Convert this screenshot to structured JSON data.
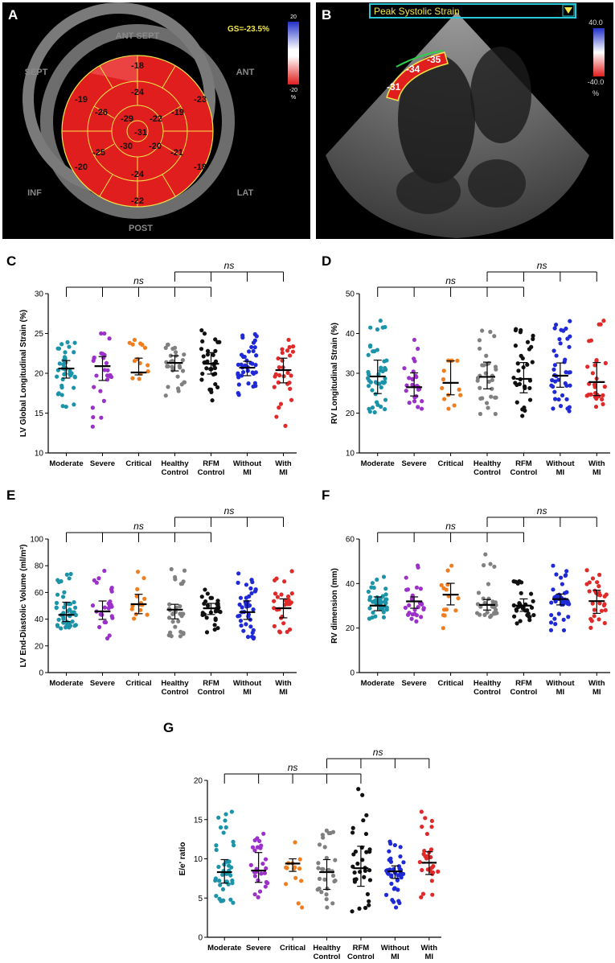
{
  "panels": {
    "A": {
      "letter": "A",
      "gs_label": "GS=-23.5%",
      "labels": {
        "ant_sept": "ANT SEPT",
        "sept": "SEPT",
        "ant": "ANT",
        "inf": "INF",
        "lat": "LAT",
        "post": "POST"
      },
      "scale": {
        "top": "20",
        "bottom": "-20",
        "unit": "%"
      },
      "segments": {
        "outer": [
          "-18",
          "-23",
          "-18",
          "-22",
          "-20",
          "-19"
        ],
        "middle": [
          "-24",
          "-19",
          "-21",
          "-24",
          "-25",
          "-26"
        ],
        "inner": [
          "-29",
          "-22",
          "-20",
          "-30"
        ],
        "apex": "-31"
      }
    },
    "B": {
      "letter": "B",
      "title": "Peak Systolic Strain",
      "scale": {
        "top": "40.0",
        "bottom": "-40.0",
        "unit": "%"
      },
      "segment_values": [
        "-31",
        "-34",
        "-35"
      ]
    }
  },
  "colors": {
    "teal": "#1b93a8",
    "purple": "#9b31c9",
    "orange": "#f07d1e",
    "grey": "#808080",
    "black": "#111111",
    "blue": "#1f2ad6",
    "red": "#e02a2a"
  },
  "chart_data": [
    {
      "type": "scatter",
      "panel": "C",
      "ylabel": "LV Global Longitudinal Strain (%)",
      "ylim": [
        10,
        30
      ],
      "yticks": [
        10,
        15,
        20,
        25,
        30
      ],
      "categories": [
        [
          "Moderate"
        ],
        [
          "Severe"
        ],
        [
          "Critical"
        ],
        [
          "Healthy",
          "Control"
        ],
        [
          "RFM",
          "Control"
        ],
        [
          "Without",
          "MI"
        ],
        [
          "With",
          "MI"
        ]
      ],
      "median": [
        20.6,
        20.9,
        20.1,
        21.3,
        21.2,
        20.7,
        20.4
      ],
      "q1": [
        19.4,
        19.1,
        19.8,
        20.3,
        19.9,
        19.7,
        18.8
      ],
      "q3": [
        21.6,
        22.1,
        21.9,
        22.2,
        22.6,
        21.5,
        21.9
      ],
      "min": [
        15.8,
        13.3,
        19.3,
        17.2,
        16.6,
        17.3,
        13.4
      ],
      "max": [
        23.9,
        25.0,
        24.2,
        23.6,
        25.4,
        24.9,
        24.2
      ],
      "n": [
        40,
        26,
        14,
        30,
        32,
        40,
        28
      ],
      "brackets": [
        {
          "from": 0,
          "to": 4,
          "label": "ns",
          "level": 1
        },
        {
          "from": 3,
          "to": 6,
          "label": "ns",
          "level": 2
        }
      ]
    },
    {
      "type": "scatter",
      "panel": "D",
      "ylabel": "RV Longitudinal Strain (%)",
      "ylim": [
        10,
        50
      ],
      "yticks": [
        10,
        20,
        30,
        40,
        50
      ],
      "categories": [
        [
          "Moderate"
        ],
        [
          "Severe"
        ],
        [
          "Critical"
        ],
        [
          "Healthy",
          "Control"
        ],
        [
          "RFM",
          "Control"
        ],
        [
          "Without",
          "MI"
        ],
        [
          "With",
          "MI"
        ]
      ],
      "median": [
        29.2,
        26.5,
        27.6,
        29.1,
        28.6,
        29.4,
        27.8
      ],
      "q1": [
        24.9,
        24.3,
        24.6,
        26.1,
        25.1,
        26.5,
        24.4
      ],
      "q3": [
        33.3,
        30.1,
        33.1,
        32.8,
        32.7,
        32.6,
        32.7
      ],
      "min": [
        20.2,
        21.1,
        21.1,
        19.8,
        19.3,
        20.5,
        21.6
      ],
      "max": [
        43.2,
        38.4,
        33.2,
        40.7,
        41.1,
        43.1,
        43.2
      ],
      "n": [
        44,
        26,
        14,
        30,
        32,
        40,
        28
      ],
      "brackets": [
        {
          "from": 0,
          "to": 4,
          "label": "ns",
          "level": 1
        },
        {
          "from": 3,
          "to": 6,
          "label": "ns",
          "level": 2
        }
      ]
    },
    {
      "type": "scatter",
      "panel": "E",
      "ylabel": "LV End-Diastolic Volume (ml/m²)",
      "ylim": [
        0,
        100
      ],
      "yticks": [
        0,
        20,
        40,
        60,
        80,
        100
      ],
      "categories": [
        [
          "Moderate"
        ],
        [
          "Severe"
        ],
        [
          "Critical"
        ],
        [
          "Healthy",
          "Control"
        ],
        [
          "RFM",
          "Control"
        ],
        [
          "Without",
          "MI"
        ],
        [
          "With",
          "MI"
        ]
      ],
      "median": [
        43.2,
        45.8,
        51.2,
        47.1,
        48.1,
        45.3,
        48.2
      ],
      "q1": [
        38.2,
        39.8,
        44.1,
        40.2,
        43.5,
        39.8,
        41.0
      ],
      "q3": [
        52.7,
        53.6,
        58.6,
        51.1,
        51.8,
        53.7,
        55.2
      ],
      "min": [
        33.1,
        25.6,
        40.4,
        27.2,
        30.2,
        25.5,
        30.2
      ],
      "max": [
        73.8,
        76.2,
        75.5,
        77.4,
        62.1,
        74.2,
        75.9
      ],
      "n": [
        44,
        26,
        14,
        30,
        32,
        40,
        28
      ],
      "brackets": [
        {
          "from": 0,
          "to": 4,
          "label": "ns",
          "level": 1
        },
        {
          "from": 3,
          "to": 6,
          "label": "ns",
          "level": 2
        }
      ]
    },
    {
      "type": "scatter",
      "panel": "F",
      "ylabel": "RV dimension (mm)",
      "ylim": [
        0,
        60
      ],
      "yticks": [
        0,
        20,
        40,
        60
      ],
      "categories": [
        [
          "Moderate"
        ],
        [
          "Severe"
        ],
        [
          "Critical"
        ],
        [
          "Healthy",
          "Control"
        ],
        [
          "RFM",
          "Control"
        ],
        [
          "Without",
          "MI"
        ],
        [
          "With",
          "MI"
        ]
      ],
      "median": [
        30.1,
        32.0,
        35.0,
        30.4,
        30.1,
        33.0,
        32.1
      ],
      "q1": [
        27.8,
        28.9,
        30.4,
        28.1,
        27.5,
        30.4,
        26.6
      ],
      "q3": [
        34.0,
        34.0,
        40.1,
        32.8,
        33.1,
        35.3,
        37.0
      ],
      "min": [
        24.2,
        23.0,
        20.0,
        25.0,
        22.1,
        19.0,
        20.1
      ],
      "max": [
        43.0,
        48.1,
        48.0,
        53.1,
        41.0,
        48.0,
        46.0
      ],
      "n": [
        44,
        26,
        14,
        30,
        32,
        40,
        28
      ],
      "brackets": [
        {
          "from": 0,
          "to": 4,
          "label": "ns",
          "level": 1
        },
        {
          "from": 3,
          "to": 6,
          "label": "ns",
          "level": 2
        }
      ]
    },
    {
      "type": "scatter",
      "panel": "G",
      "ylabel": "E/e' ratio",
      "ylim": [
        0,
        20
      ],
      "yticks": [
        0,
        5,
        10,
        15,
        20
      ],
      "categories": [
        [
          "Moderate"
        ],
        [
          "Severe"
        ],
        [
          "Critical"
        ],
        [
          "Healthy",
          "Control"
        ],
        [
          "RFM",
          "Control"
        ],
        [
          "Without",
          "MI"
        ],
        [
          "With",
          "MI"
        ]
      ],
      "median": [
        8.3,
        8.5,
        9.4,
        8.3,
        8.8,
        8.4,
        9.5
      ],
      "q1": [
        6.9,
        7.0,
        8.4,
        6.1,
        6.5,
        7.5,
        8.0
      ],
      "q3": [
        9.9,
        10.8,
        10.0,
        9.9,
        11.6,
        9.1,
        10.9
      ],
      "min": [
        4.4,
        5.1,
        3.8,
        3.8,
        3.3,
        3.8,
        5.1
      ],
      "max": [
        16.0,
        13.2,
        12.1,
        13.6,
        18.9,
        12.2,
        16.0
      ],
      "n": [
        44,
        26,
        14,
        30,
        32,
        40,
        28
      ],
      "brackets": [
        {
          "from": 0,
          "to": 4,
          "label": "ns",
          "level": 1
        },
        {
          "from": 3,
          "to": 6,
          "label": "ns",
          "level": 2
        }
      ]
    }
  ]
}
